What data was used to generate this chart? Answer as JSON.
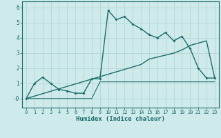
{
  "xlabel": "Humidex (Indice chaleur)",
  "background_color": "#ceeaea",
  "grid_color": "#b8d8d8",
  "line_color": "#1a6b6b",
  "x_data": [
    0,
    1,
    2,
    3,
    4,
    5,
    6,
    7,
    8,
    9,
    10,
    11,
    12,
    13,
    14,
    15,
    16,
    17,
    18,
    19,
    20,
    21,
    22,
    23
  ],
  "y_main": [
    0.0,
    1.0,
    1.4,
    1.0,
    0.6,
    0.5,
    0.35,
    0.35,
    1.3,
    1.3,
    5.8,
    5.2,
    5.4,
    4.9,
    4.6,
    4.2,
    4.0,
    4.35,
    3.8,
    4.1,
    3.3,
    2.0,
    1.35,
    1.35
  ],
  "y_flat": [
    0.0,
    0.0,
    0.0,
    0.0,
    0.0,
    0.0,
    0.0,
    0.0,
    0.0,
    1.1,
    1.1,
    1.1,
    1.1,
    1.1,
    1.1,
    1.1,
    1.1,
    1.1,
    1.1,
    1.1,
    1.1,
    1.1,
    1.1,
    1.1
  ],
  "y_rising": [
    0.0,
    0.16,
    0.32,
    0.48,
    0.64,
    0.8,
    0.96,
    1.12,
    1.28,
    1.44,
    1.6,
    1.76,
    1.92,
    2.08,
    2.24,
    2.6,
    2.73,
    2.86,
    2.99,
    3.2,
    3.5,
    3.65,
    3.8,
    1.35
  ],
  "ylim": [
    -0.6,
    6.4
  ],
  "xlim": [
    -0.5,
    23.5
  ],
  "yticks": [
    0,
    1,
    2,
    3,
    4,
    5,
    6
  ],
  "ytick_labels": [
    "-0",
    "1",
    "2",
    "3",
    "4",
    "5",
    "6"
  ],
  "xticks": [
    0,
    1,
    2,
    3,
    4,
    5,
    6,
    7,
    8,
    9,
    10,
    11,
    12,
    13,
    14,
    15,
    16,
    17,
    18,
    19,
    20,
    21,
    22,
    23
  ]
}
